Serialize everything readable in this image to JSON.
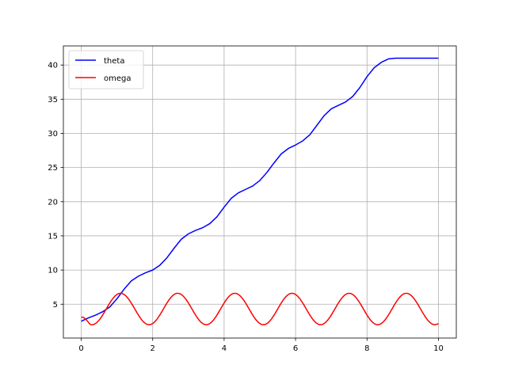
{
  "chart_data": {
    "type": "line",
    "title": "",
    "xlabel": "",
    "ylabel": "",
    "xlim": [
      -0.5,
      10.5
    ],
    "ylim": [
      0.05,
      42.8
    ],
    "xticks": [
      0,
      2,
      4,
      6,
      8,
      10
    ],
    "yticks": [
      5,
      10,
      15,
      20,
      25,
      30,
      35,
      40
    ],
    "grid": true,
    "legend_position": "upper-left",
    "series": [
      {
        "name": "theta",
        "color": "#0000ff",
        "x": [
          0,
          0.2,
          0.4,
          0.6,
          0.8,
          1.0,
          1.2,
          1.4,
          1.6,
          1.8,
          2.0,
          2.2,
          2.4,
          2.6,
          2.8,
          3.0,
          3.2,
          3.4,
          3.6,
          3.8,
          4.0,
          4.2,
          4.4,
          4.6,
          4.8,
          5.0,
          5.2,
          5.4,
          5.6,
          5.8,
          6.0,
          6.2,
          6.4,
          6.6,
          6.8,
          7.0,
          7.2,
          7.4,
          7.6,
          7.8,
          8.0,
          8.2,
          8.4,
          8.6,
          8.8,
          9.0,
          9.2,
          9.4,
          9.6,
          9.8,
          10.0
        ],
        "y": [
          2.5,
          3.0,
          3.4,
          3.9,
          4.6,
          5.8,
          7.2,
          8.4,
          9.1,
          9.6,
          10.0,
          10.7,
          11.8,
          13.2,
          14.5,
          15.3,
          15.8,
          16.2,
          16.8,
          17.8,
          19.2,
          20.5,
          21.3,
          21.8,
          22.3,
          23.1,
          24.3,
          25.7,
          27.0,
          27.8,
          28.3,
          28.9,
          29.8,
          31.2,
          32.6,
          33.6,
          34.1,
          34.6,
          35.4,
          36.7,
          38.3,
          39.6,
          40.4,
          40.9,
          41.0,
          41.0,
          41.0,
          41.0,
          41.0,
          41.0,
          41.0
        ]
      },
      {
        "name": "omega",
        "color": "#ff0000",
        "x": [],
        "y": [],
        "description_hidden": "",
        "period": 1.6,
        "min": 2.0,
        "max": 6.6,
        "first_peak_x": 1.1,
        "start_y": 3.1
      }
    ]
  }
}
